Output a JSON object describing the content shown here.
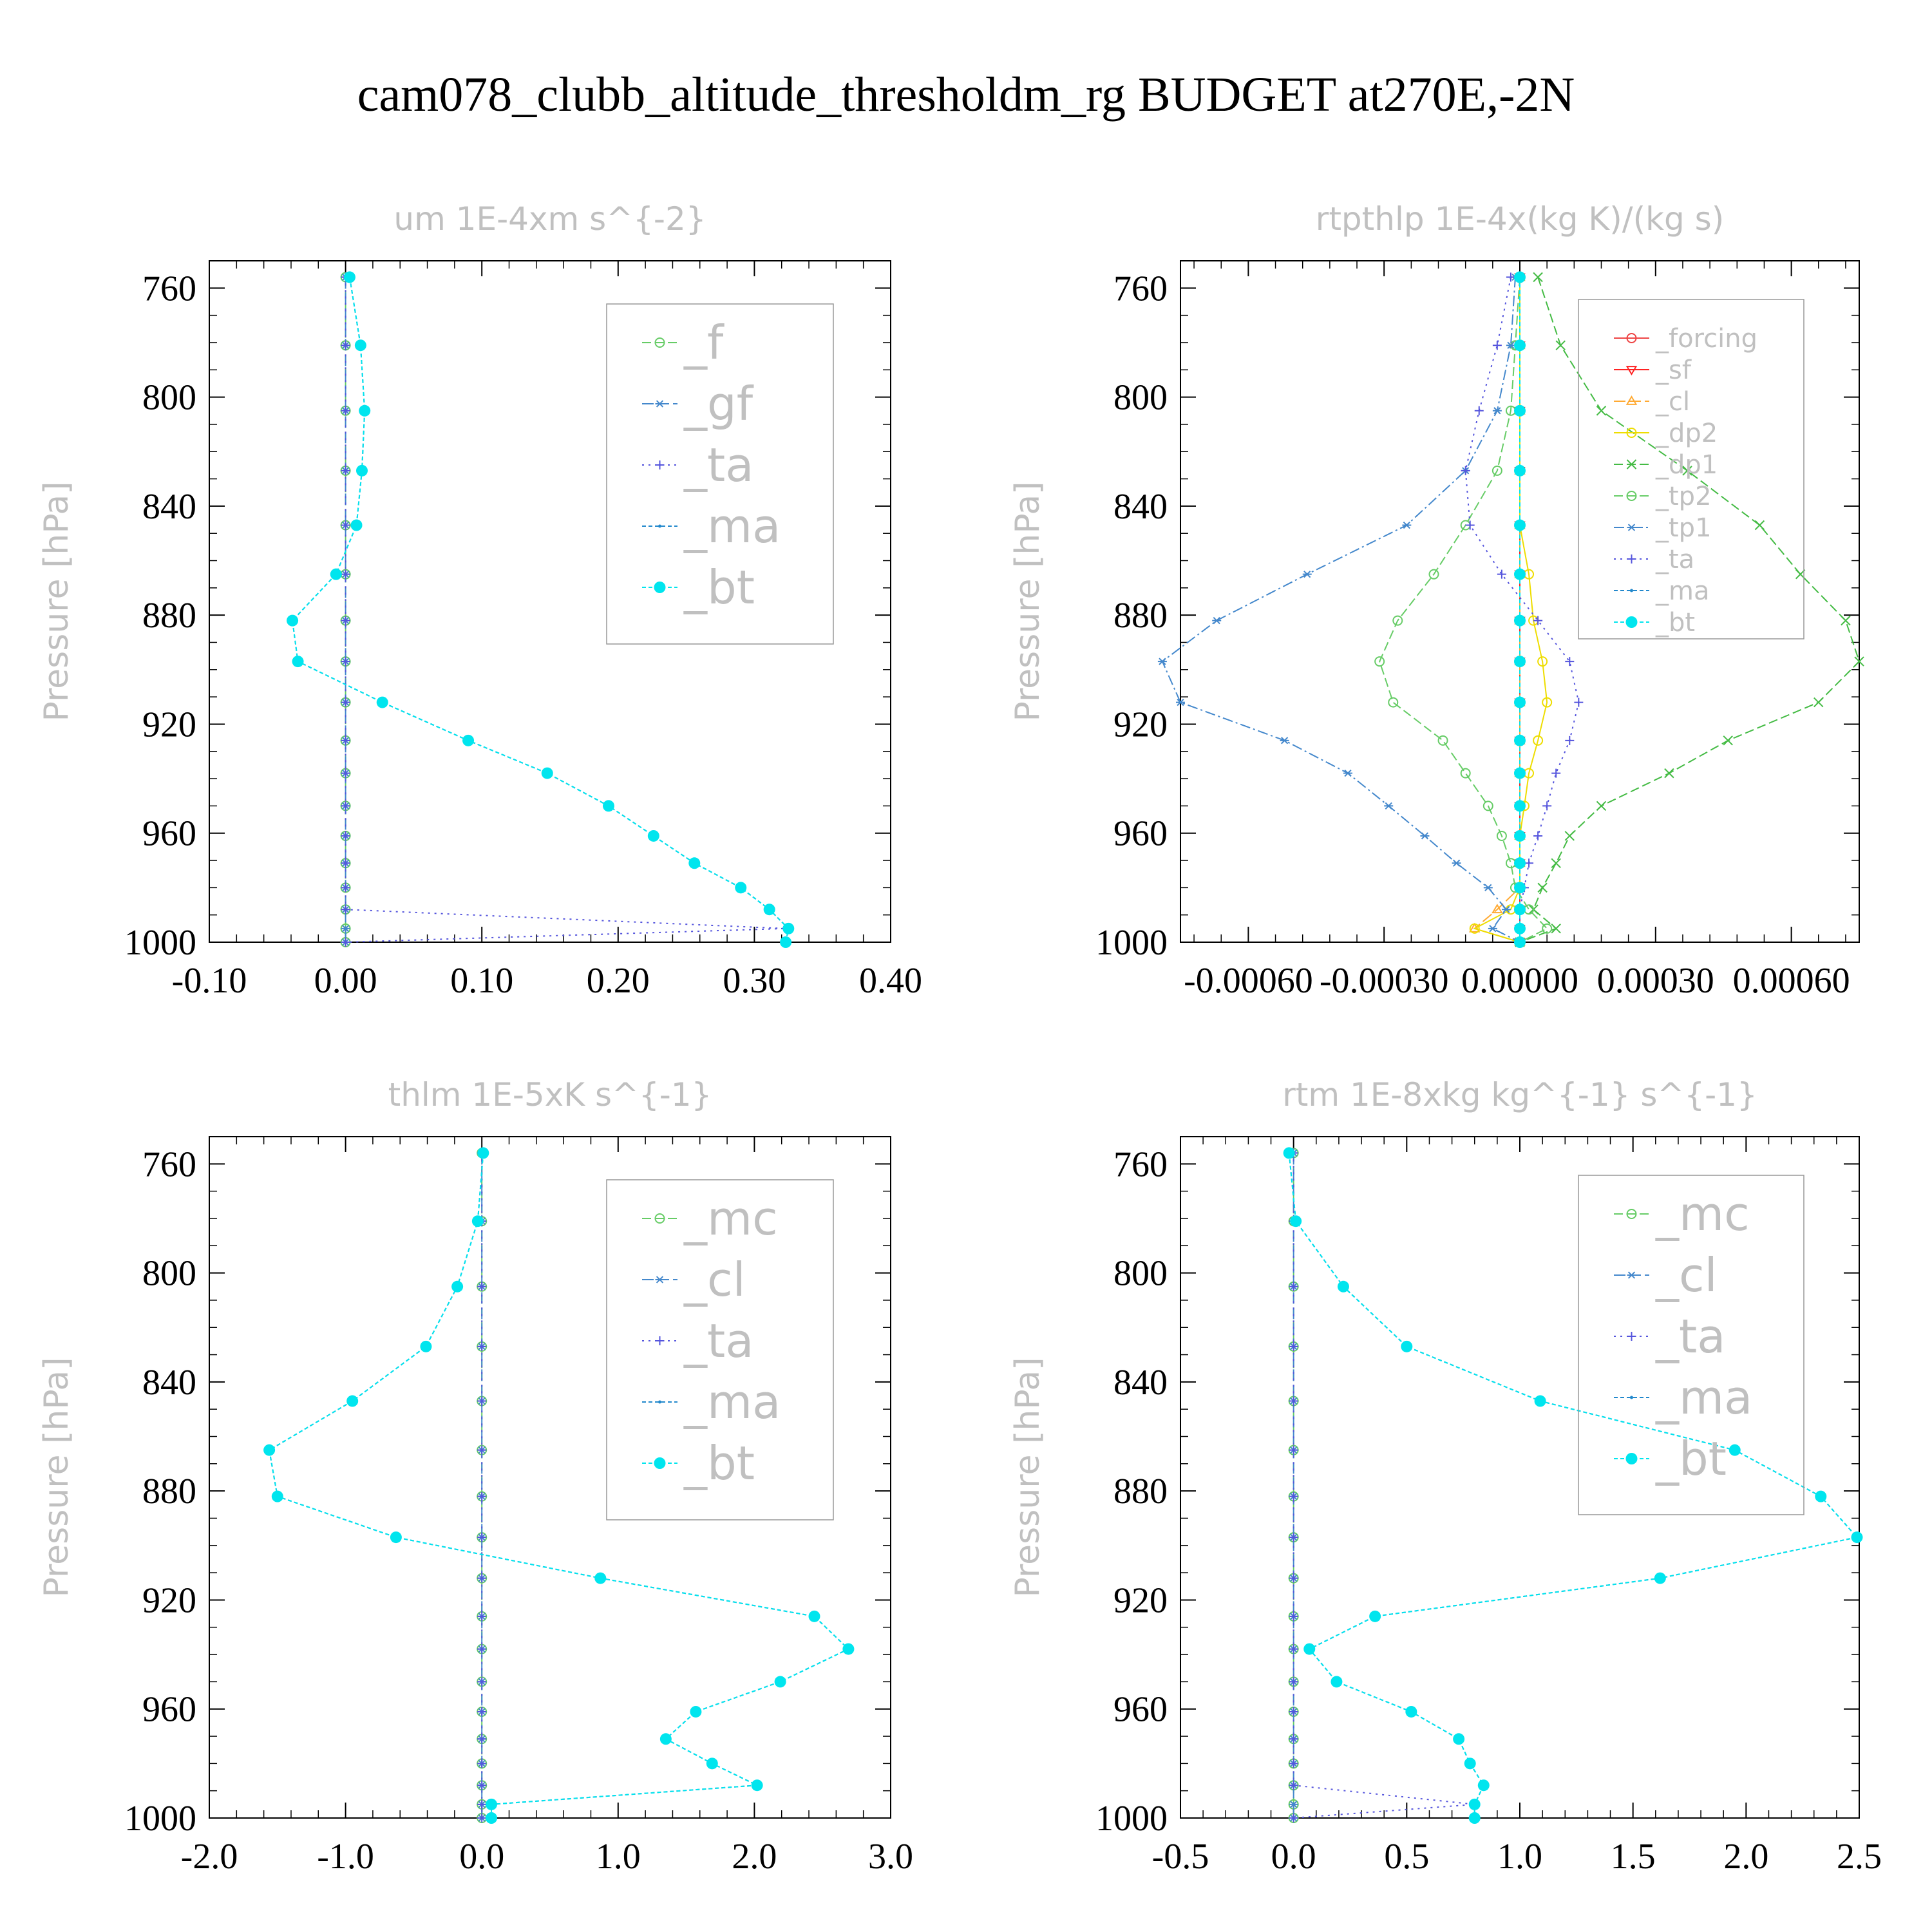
{
  "title": "cam078_clubb_altitude_thresholdm_rg  BUDGET at270E,-2N",
  "chart_data": [
    {
      "type": "line",
      "title": "um  1E-4xm s^{-2}",
      "ylabel": "Pressure [hPa]",
      "xlim": [
        -0.1,
        0.4
      ],
      "ylim": [
        1000,
        750
      ],
      "xticks": [
        "-0.10",
        "0.00",
        "0.10",
        "0.20",
        "0.30",
        "0.40"
      ],
      "xtick_values": [
        -0.1,
        0.0,
        0.1,
        0.2,
        0.3,
        0.4
      ],
      "yticks": [
        "760",
        "800",
        "840",
        "880",
        "920",
        "960",
        "1000"
      ],
      "ytick_values": [
        760,
        800,
        840,
        880,
        920,
        960,
        1000
      ],
      "legend": "top-right",
      "pressure": [
        756,
        781,
        805,
        827,
        847,
        865,
        882,
        897,
        912,
        926,
        938,
        950,
        961,
        971,
        980,
        988,
        995,
        1000
      ],
      "series": [
        {
          "name": "_f",
          "color": "#66cc66",
          "marker": "circle",
          "values": [
            0,
            0,
            0,
            0,
            0,
            0,
            0,
            0,
            0,
            0,
            0,
            0,
            0,
            0,
            0,
            0,
            0,
            0
          ]
        },
        {
          "name": "_gf",
          "color": "#4488cc",
          "marker": "asterisk",
          "values": [
            0,
            0,
            0,
            0,
            0,
            0,
            0,
            0,
            0,
            0,
            0,
            0,
            0,
            0,
            0,
            0,
            0,
            0
          ]
        },
        {
          "name": "_ta",
          "color": "#5555dd",
          "marker": "plus",
          "values": [
            0,
            0,
            0,
            0,
            0,
            0,
            0,
            0,
            0,
            0,
            0,
            0,
            0,
            0,
            0,
            0,
            0.323,
            0
          ]
        },
        {
          "name": "_ma",
          "color": "#2288cc",
          "marker": "dot",
          "values": [
            0.003,
            0.011,
            0.014,
            0.012,
            0.008,
            -0.007,
            -0.039,
            -0.035,
            0.027,
            0.09,
            0.148,
            0.193,
            0.226,
            0.256,
            0.29,
            0.311,
            0.325,
            0.323
          ]
        },
        {
          "name": "_bt",
          "color": "#00e5ee",
          "marker": "bigdot",
          "values": [
            0.003,
            0.011,
            0.014,
            0.012,
            0.008,
            -0.007,
            -0.039,
            -0.035,
            0.027,
            0.09,
            0.148,
            0.193,
            0.226,
            0.256,
            0.29,
            0.311,
            0.325,
            0.323
          ]
        }
      ]
    },
    {
      "type": "line",
      "title": "rtpthlp  1E-4x(kg K)/(kg s)",
      "ylabel": "Pressure [hPa]",
      "xlim": [
        -0.00075,
        0.00075
      ],
      "ylim": [
        1000,
        750
      ],
      "xticks": [
        "-0.00060",
        "-0.00030",
        "0.00000",
        "0.00030",
        "0.00060"
      ],
      "xtick_values": [
        -0.0006,
        -0.0003,
        0.0,
        0.0003,
        0.0006
      ],
      "yticks": [
        "760",
        "800",
        "840",
        "880",
        "920",
        "960",
        "1000"
      ],
      "ytick_values": [
        760,
        800,
        840,
        880,
        920,
        960,
        1000
      ],
      "legend": "top-right",
      "pressure": [
        756,
        781,
        805,
        827,
        847,
        865,
        882,
        897,
        912,
        926,
        938,
        950,
        961,
        971,
        980,
        988,
        995,
        1000
      ],
      "series": [
        {
          "name": "_forcing",
          "color": "#ee4444",
          "marker": "circle",
          "values": [
            0,
            0,
            0,
            0,
            0,
            0,
            0,
            0,
            0,
            0,
            0,
            0,
            0,
            0,
            0,
            0,
            0,
            0
          ]
        },
        {
          "name": "_sf",
          "color": "#ff2222",
          "marker": "tri-down",
          "values": [
            0,
            0,
            0,
            0,
            0,
            0,
            0,
            0,
            0,
            0,
            0,
            0,
            0,
            0,
            0,
            0,
            0,
            0
          ]
        },
        {
          "name": "_cl",
          "color": "#ffaa33",
          "marker": "tri-up",
          "values": [
            0,
            0,
            0,
            0,
            0,
            0,
            0,
            0,
            0,
            0,
            0,
            0,
            0,
            0,
            0,
            -5e-05,
            -0.0001,
            0
          ]
        },
        {
          "name": "_dp2",
          "color": "#eedd00",
          "marker": "circle",
          "values": [
            0,
            0,
            0,
            0,
            0,
            2e-05,
            3e-05,
            5e-05,
            6e-05,
            4e-05,
            2e-05,
            1e-05,
            0,
            0,
            0,
            -2e-05,
            -0.0001,
            0
          ]
        },
        {
          "name": "_dp1",
          "color": "#44bb44",
          "marker": "x",
          "values": [
            4e-05,
            9e-05,
            0.00018,
            0.00037,
            0.00053,
            0.00062,
            0.00072,
            0.00075,
            0.00066,
            0.00046,
            0.00033,
            0.00018,
            0.00011,
            8e-05,
            5e-05,
            3e-05,
            8e-05,
            0
          ]
        },
        {
          "name": "_tp2",
          "color": "#66cc66",
          "marker": "circle",
          "values": [
            0,
            -1e-05,
            -2e-05,
            -5e-05,
            -0.00012,
            -0.00019,
            -0.00027,
            -0.00031,
            -0.00028,
            -0.00017,
            -0.00012,
            -7e-05,
            -4e-05,
            -2e-05,
            -1e-05,
            2e-05,
            6e-05,
            0
          ]
        },
        {
          "name": "_tp1",
          "color": "#4488cc",
          "marker": "asterisk",
          "values": [
            -1e-05,
            -2e-05,
            -5e-05,
            -0.00012,
            -0.00025,
            -0.00047,
            -0.00067,
            -0.00079,
            -0.00075,
            -0.00052,
            -0.00038,
            -0.00029,
            -0.00021,
            -0.00014,
            -7e-05,
            -3e-05,
            -6e-05,
            0
          ]
        },
        {
          "name": "_ta",
          "color": "#5555dd",
          "marker": "plus",
          "values": [
            -2e-05,
            -5e-05,
            -9e-05,
            -0.00012,
            -0.00011,
            -4e-05,
            4e-05,
            0.00011,
            0.00013,
            0.00011,
            8e-05,
            6e-05,
            4e-05,
            2e-05,
            1e-05,
            0,
            0,
            0
          ]
        },
        {
          "name": "_ma",
          "color": "#2288cc",
          "marker": "dot",
          "values": [
            0,
            0,
            0,
            0,
            0,
            0,
            0,
            0,
            0,
            0,
            0,
            0,
            0,
            0,
            0,
            0,
            0,
            0
          ]
        },
        {
          "name": "_bt",
          "color": "#00e5ee",
          "marker": "bigdot",
          "values": [
            0,
            0,
            0,
            0,
            0,
            0,
            0,
            0,
            0,
            0,
            0,
            0,
            0,
            0,
            0,
            0,
            0,
            0
          ]
        }
      ]
    },
    {
      "type": "line",
      "title": "thlm  1E-5xK s^{-1}",
      "ylabel": "Pressure [hPa]",
      "xlim": [
        -2.0,
        3.0
      ],
      "ylim": [
        1000,
        750
      ],
      "xticks": [
        "-2.0",
        "-1.0",
        "0.0",
        "1.0",
        "2.0",
        "3.0"
      ],
      "xtick_values": [
        -2.0,
        -1.0,
        0.0,
        1.0,
        2.0,
        3.0
      ],
      "yticks": [
        "760",
        "800",
        "840",
        "880",
        "920",
        "960",
        "1000"
      ],
      "ytick_values": [
        760,
        800,
        840,
        880,
        920,
        960,
        1000
      ],
      "legend": "top-right",
      "pressure": [
        756,
        781,
        805,
        827,
        847,
        865,
        882,
        897,
        912,
        926,
        938,
        950,
        961,
        971,
        980,
        988,
        995,
        1000
      ],
      "series": [
        {
          "name": "_mc",
          "color": "#66cc66",
          "marker": "circle",
          "values": [
            0,
            0,
            0,
            0,
            0,
            0,
            0,
            0,
            0,
            0,
            0,
            0,
            0,
            0,
            0,
            0,
            0,
            0
          ]
        },
        {
          "name": "_cl",
          "color": "#4488cc",
          "marker": "asterisk",
          "values": [
            0,
            0,
            0,
            0,
            0,
            0,
            0,
            0,
            0,
            0,
            0,
            0,
            0,
            0,
            0,
            0,
            0,
            0
          ]
        },
        {
          "name": "_ta",
          "color": "#5555dd",
          "marker": "plus",
          "values": [
            0,
            0,
            0,
            0,
            0,
            0,
            0,
            0,
            0,
            0,
            0,
            0,
            0,
            0,
            0,
            0,
            0,
            0
          ]
        },
        {
          "name": "_ma",
          "color": "#2288cc",
          "marker": "dot",
          "values": [
            0.01,
            -0.03,
            -0.18,
            -0.41,
            -0.95,
            -1.56,
            -1.5,
            -0.63,
            0.87,
            2.44,
            2.69,
            2.19,
            1.57,
            1.35,
            1.69,
            2.02,
            0.07,
            0.07
          ]
        },
        {
          "name": "_bt",
          "color": "#00e5ee",
          "marker": "bigdot",
          "values": [
            0.01,
            -0.03,
            -0.18,
            -0.41,
            -0.95,
            -1.56,
            -1.5,
            -0.63,
            0.87,
            2.44,
            2.69,
            2.19,
            1.57,
            1.35,
            1.69,
            2.02,
            0.07,
            0.07
          ]
        }
      ]
    },
    {
      "type": "line",
      "title": "rtm  1E-8xkg kg^{-1} s^{-1}",
      "ylabel": "Pressure [hPa]",
      "xlim": [
        -0.5,
        2.5
      ],
      "ylim": [
        1000,
        750
      ],
      "xticks": [
        "-0.5",
        "0.0",
        "0.5",
        "1.0",
        "1.5",
        "2.0",
        "2.5"
      ],
      "xtick_values": [
        -0.5,
        0.0,
        0.5,
        1.0,
        1.5,
        2.0,
        2.5
      ],
      "yticks": [
        "760",
        "800",
        "840",
        "880",
        "920",
        "960",
        "1000"
      ],
      "ytick_values": [
        760,
        800,
        840,
        880,
        920,
        960,
        1000
      ],
      "legend": "top-right",
      "pressure": [
        756,
        781,
        805,
        827,
        847,
        865,
        882,
        897,
        912,
        926,
        938,
        950,
        961,
        971,
        980,
        988,
        995,
        1000
      ],
      "series": [
        {
          "name": "_mc",
          "color": "#66cc66",
          "marker": "circle",
          "values": [
            0,
            0,
            0,
            0,
            0,
            0,
            0,
            0,
            0,
            0,
            0,
            0,
            0,
            0,
            0,
            0,
            0,
            0
          ]
        },
        {
          "name": "_cl",
          "color": "#4488cc",
          "marker": "asterisk",
          "values": [
            0,
            0,
            0,
            0,
            0,
            0,
            0,
            0,
            0,
            0,
            0,
            0,
            0,
            0,
            0,
            0,
            0,
            0
          ]
        },
        {
          "name": "_ta",
          "color": "#5555dd",
          "marker": "plus",
          "values": [
            0,
            0,
            0,
            0,
            0,
            0,
            0,
            0,
            0,
            0,
            0,
            0,
            0,
            0,
            0,
            0,
            0.8,
            0
          ]
        },
        {
          "name": "_ma",
          "color": "#2288cc",
          "marker": "dot",
          "values": [
            -0.02,
            0.01,
            0.22,
            0.5,
            1.09,
            1.95,
            2.33,
            2.49,
            1.62,
            0.36,
            0.07,
            0.19,
            0.52,
            0.73,
            0.78,
            0.84,
            0.8,
            0.8
          ]
        },
        {
          "name": "_bt",
          "color": "#00e5ee",
          "marker": "bigdot",
          "values": [
            -0.02,
            0.01,
            0.22,
            0.5,
            1.09,
            1.95,
            2.33,
            2.49,
            1.62,
            0.36,
            0.07,
            0.19,
            0.52,
            0.73,
            0.78,
            0.84,
            0.8,
            0.8
          ]
        }
      ]
    }
  ]
}
